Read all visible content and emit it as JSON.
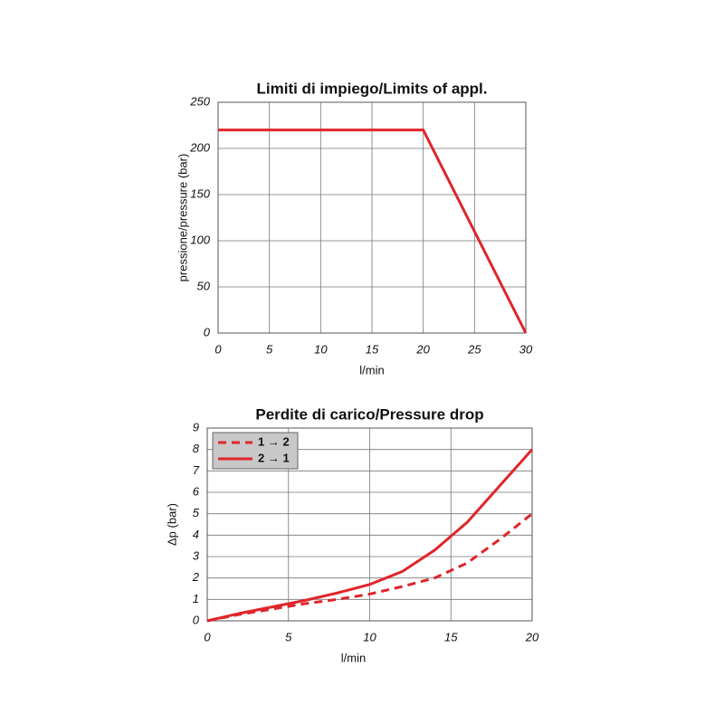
{
  "chart_data": [
    {
      "type": "line",
      "title": "Limiti di impiego/Limits of appl.",
      "x_label": "l/min",
      "y_label": "pressione/pressure (bar)",
      "x": [
        0,
        20,
        30
      ],
      "values": [
        220,
        220,
        0
      ],
      "color": "#e0252b",
      "xlim": [
        0,
        30
      ],
      "ylim": [
        0,
        250
      ],
      "xticks": [
        0,
        5,
        10,
        15,
        20,
        25,
        30
      ],
      "yticks": [
        0,
        50,
        100,
        150,
        200,
        250
      ],
      "grid": true
    },
    {
      "type": "line",
      "title": "Perdite di carico/Pressure drop",
      "x_label": "l/min",
      "y_label": "Δp (bar)",
      "x": [
        0,
        2,
        4,
        6,
        8,
        10,
        12,
        14,
        16,
        18,
        20
      ],
      "series": [
        {
          "name": "1 → 2",
          "color": "#e0252b",
          "dash": "dashed",
          "values": [
            0,
            0.3,
            0.55,
            0.8,
            1.0,
            1.25,
            1.6,
            2.0,
            2.7,
            3.8,
            5.0
          ]
        },
        {
          "name": "2 → 1",
          "color": "#e0252b",
          "dash": "solid",
          "values": [
            0,
            0.35,
            0.65,
            0.95,
            1.3,
            1.7,
            2.3,
            3.3,
            4.6,
            6.3,
            8.0
          ]
        }
      ],
      "xlim": [
        0,
        20
      ],
      "ylim": [
        0,
        9
      ],
      "xticks": [
        0,
        5,
        10,
        15,
        20
      ],
      "yticks": [
        0,
        1,
        2,
        3,
        4,
        5,
        6,
        7,
        8,
        9
      ],
      "grid": true,
      "legend": "upper left"
    }
  ]
}
